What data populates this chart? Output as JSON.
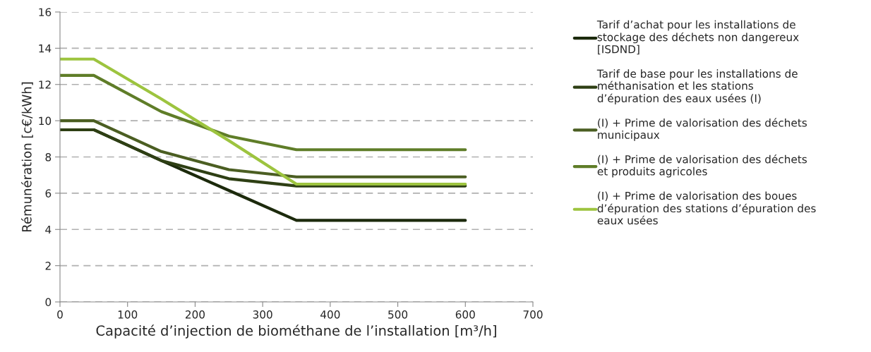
{
  "chart_data": {
    "type": "line",
    "xlabel": "Capacité d’injection de biométhane de l’installation [m³/h]",
    "ylabel": "Rémunération [c€/kWh]",
    "x": [
      0,
      50,
      150,
      250,
      350,
      600
    ],
    "series": [
      {
        "name": "Tarif d’achat pour les installations de\nstockage des déchets non dangereux\n[ISDND]",
        "color": "#1c2a0c",
        "values": [
          9.5,
          9.5,
          7.8,
          6.15,
          4.5,
          4.5
        ]
      },
      {
        "name": "Tarif de base pour les installations de\nméthanisation et les stations\nd’épuration des eaux usées (I)",
        "color": "#2e3f14",
        "values": [
          9.5,
          9.5,
          7.8,
          6.8,
          6.4,
          6.4
        ]
      },
      {
        "name": "(I) + Prime de valorisation des déchets\nmunicipaux",
        "color": "#4b5e22",
        "values": [
          10,
          10,
          8.3,
          7.3,
          6.9,
          6.9
        ]
      },
      {
        "name": "(I) + Prime de valorisation des déchets\net produits agricoles",
        "color": "#5f7d28",
        "values": [
          12.5,
          12.5,
          10.5,
          9.15,
          8.4,
          8.4
        ]
      },
      {
        "name": "(I) + Prime de valorisation des boues\nd’épuration des stations d’épuration des\neaux usées",
        "color": "#9dc43f",
        "values": [
          13.4,
          13.4,
          11.2,
          8.9,
          6.5,
          6.5
        ]
      }
    ],
    "xlim": [
      0,
      700
    ],
    "xticks": [
      0,
      100,
      200,
      300,
      400,
      500,
      600,
      700
    ],
    "ylim": [
      0,
      16
    ],
    "yticks": [
      0,
      2,
      4,
      6,
      8,
      10,
      12,
      14,
      16
    ],
    "grid": "y",
    "legend": "right",
    "marker": "none",
    "line_style": "solid"
  }
}
